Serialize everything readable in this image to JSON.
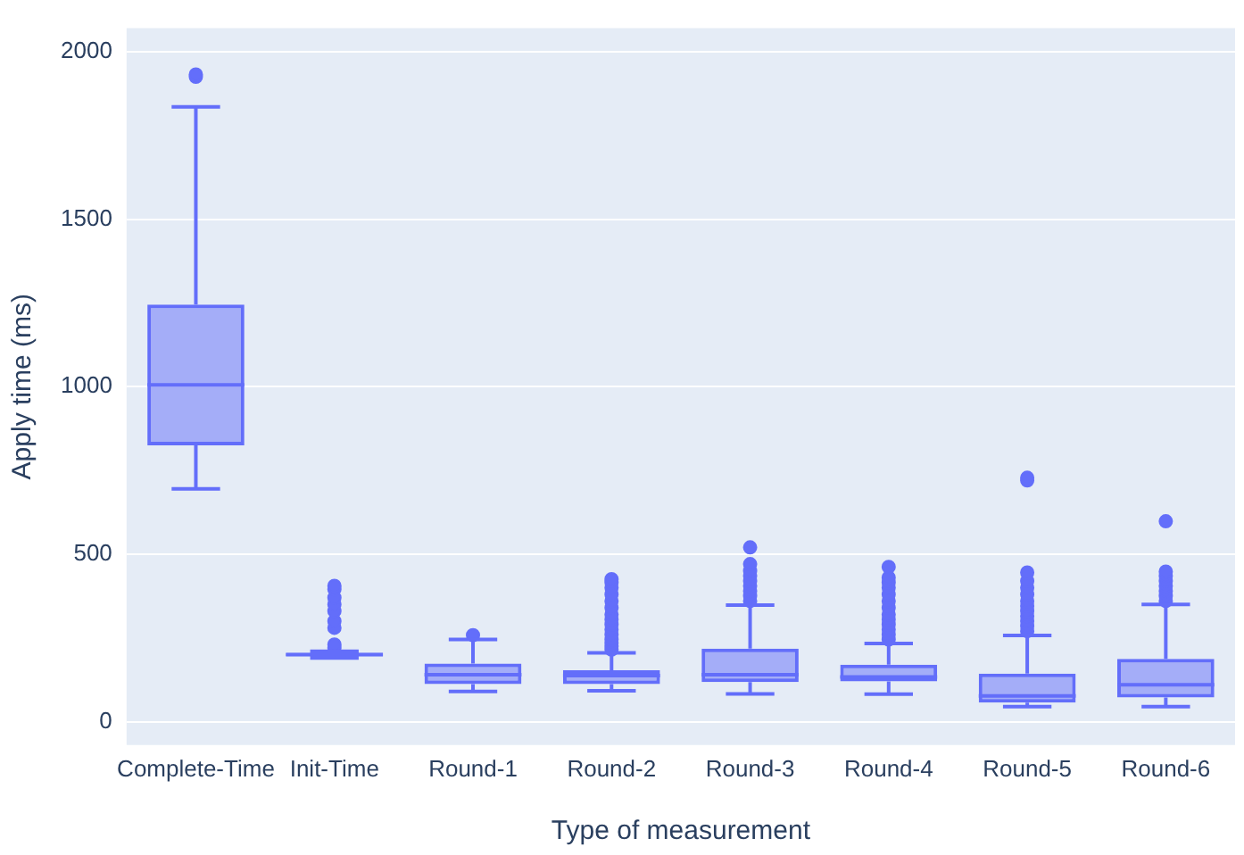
{
  "chart_data": {
    "type": "box",
    "xlabel": "Type of measurement",
    "ylabel": "Apply time (ms)",
    "categories": [
      "Complete-Time",
      "Init-Time",
      "Round-1",
      "Round-2",
      "Round-3",
      "Round-4",
      "Round-5",
      "Round-6"
    ],
    "color": "#636efa",
    "ylim": [
      -70,
      2070
    ],
    "yticks": [
      0,
      500,
      1000,
      1500,
      2000
    ],
    "grid": "y",
    "legend": false,
    "boxes": [
      {
        "low": 695,
        "q1": 825,
        "median": 1005,
        "q3": 1245,
        "high": 1835,
        "outliers": [
          1925,
          1932
        ]
      },
      {
        "low": 190,
        "q1": 195,
        "median": 200,
        "q3": 205,
        "high": 210,
        "outliers": [
          220,
          230,
          280,
          300,
          330,
          350,
          370,
          395,
          405
        ]
      },
      {
        "low": 90,
        "q1": 112,
        "median": 140,
        "q3": 173,
        "high": 245,
        "outliers": [
          258
        ]
      },
      {
        "low": 92,
        "q1": 112,
        "median": 137,
        "q3": 153,
        "high": 205,
        "outliers": [
          215,
          225,
          235,
          245,
          260,
          275,
          290,
          305,
          320,
          340,
          360,
          380,
          400,
          415,
          425
        ]
      },
      {
        "low": 83,
        "q1": 118,
        "median": 140,
        "q3": 218,
        "high": 348,
        "outliers": [
          360,
          375,
          390,
          405,
          420,
          435,
          450,
          470,
          520
        ]
      },
      {
        "low": 82,
        "q1": 120,
        "median": 133,
        "q3": 170,
        "high": 233,
        "outliers": [
          245,
          260,
          275,
          290,
          305,
          320,
          340,
          360,
          380,
          400,
          415,
          430,
          462
        ]
      },
      {
        "low": 45,
        "q1": 57,
        "median": 77,
        "q3": 143,
        "high": 257,
        "outliers": [
          270,
          285,
          300,
          315,
          330,
          345,
          360,
          380,
          400,
          420,
          445,
          720,
          728
        ]
      },
      {
        "low": 45,
        "q1": 72,
        "median": 110,
        "q3": 187,
        "high": 350,
        "outliers": [
          360,
          375,
          390,
          405,
          420,
          435,
          448,
          598
        ]
      }
    ]
  }
}
